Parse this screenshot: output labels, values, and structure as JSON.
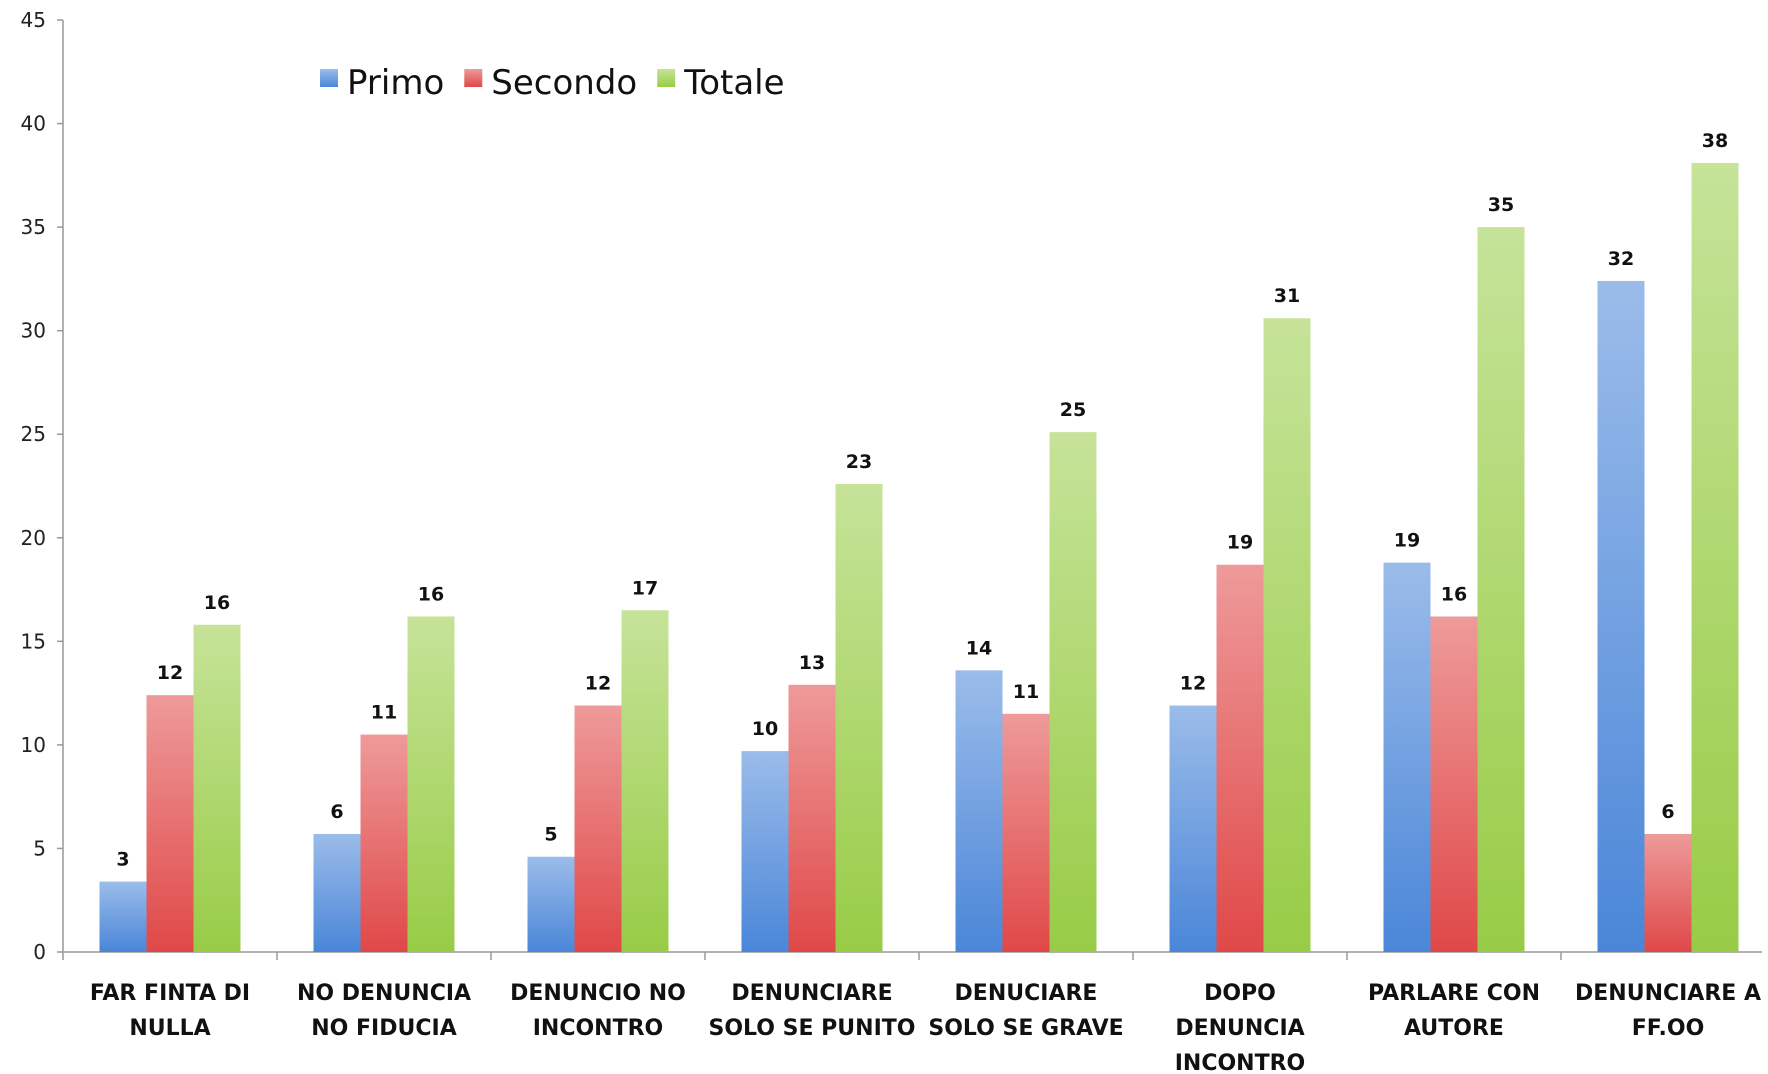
{
  "chart_data": {
    "type": "bar",
    "title": "",
    "xlabel": "",
    "ylabel": "",
    "ylim": [
      0,
      45
    ],
    "yticks": [
      0,
      5,
      10,
      15,
      20,
      25,
      30,
      35,
      40,
      45
    ],
    "grid": false,
    "legend_position": "top-left",
    "categories": [
      [
        "FAR FINTA DI",
        "NULLA"
      ],
      [
        "NO DENUNCIA",
        "NO FIDUCIA"
      ],
      [
        "DENUNCIO NO",
        "INCONTRO"
      ],
      [
        "DENUNCIARE",
        "SOLO SE PUNITO"
      ],
      [
        "DENUCIARE",
        "SOLO SE GRAVE"
      ],
      [
        "DOPO",
        "DENUNCIA",
        "INCONTRO"
      ],
      [
        "PARLARE CON",
        "AUTORE"
      ],
      [
        "DENUNCIARE A",
        "FF.OO"
      ]
    ],
    "series": [
      {
        "name": "Primo",
        "color": "#4a86d8",
        "values": [
          3.4,
          5.7,
          4.6,
          9.7,
          13.6,
          11.9,
          18.8,
          32.4
        ],
        "labels": [
          "3",
          "6",
          "5",
          "10",
          "14",
          "12",
          "19",
          "32"
        ]
      },
      {
        "name": "Secondo",
        "color": "#e04848",
        "values": [
          12.4,
          10.5,
          11.9,
          12.9,
          11.5,
          18.7,
          16.2,
          5.7
        ],
        "labels": [
          "12",
          "11",
          "12",
          "13",
          "11",
          "19",
          "16",
          "6"
        ]
      },
      {
        "name": "Totale",
        "color": "#98cc46",
        "values": [
          15.8,
          16.2,
          16.5,
          22.6,
          25.1,
          30.6,
          35.0,
          38.1
        ],
        "labels": [
          "16",
          "16",
          "17",
          "23",
          "25",
          "31",
          "35",
          "38"
        ]
      }
    ]
  }
}
